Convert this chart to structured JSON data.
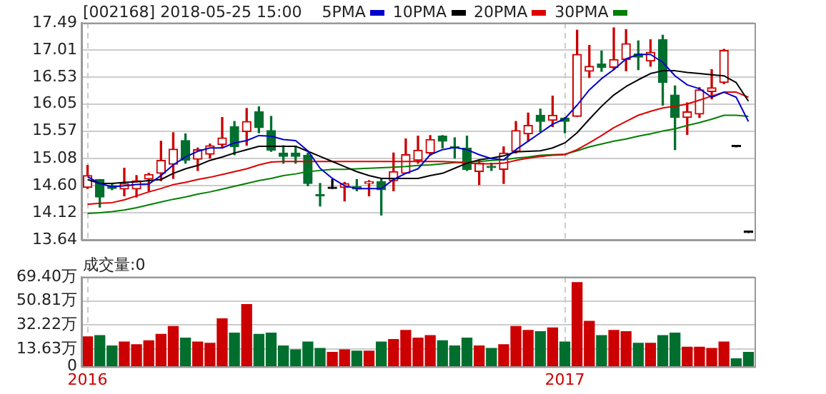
{
  "chart_data": [
    {
      "type": "candlestick",
      "title": "[002168] 2018-05-25 15:00",
      "categories": [
        "2016",
        null,
        null,
        null,
        null,
        null,
        null,
        null,
        null,
        null,
        null,
        null,
        null,
        null,
        null,
        null,
        null,
        null,
        null,
        null,
        null,
        null,
        null,
        null,
        null,
        null,
        null,
        null,
        null,
        null,
        null,
        null,
        null,
        null,
        null,
        null,
        null,
        null,
        null,
        "2017",
        null,
        null,
        null,
        null,
        null,
        null,
        null,
        null,
        null,
        null,
        null,
        null,
        null,
        null,
        null
      ],
      "ohlc": [
        [
          14.57,
          14.96,
          14.55,
          14.78
        ],
        [
          14.71,
          14.71,
          14.22,
          14.4
        ],
        [
          14.6,
          14.62,
          14.53,
          14.55
        ],
        [
          14.54,
          14.91,
          14.42,
          14.64
        ],
        [
          14.54,
          14.78,
          14.4,
          14.69
        ],
        [
          14.72,
          14.82,
          14.51,
          14.8
        ],
        [
          14.82,
          15.39,
          14.69,
          15.05
        ],
        [
          14.98,
          15.54,
          14.73,
          15.25
        ],
        [
          15.4,
          15.52,
          15.0,
          15.05
        ],
        [
          15.07,
          15.27,
          14.87,
          15.24
        ],
        [
          15.16,
          15.34,
          15.09,
          15.31
        ],
        [
          15.33,
          15.81,
          15.27,
          15.45
        ],
        [
          15.65,
          15.74,
          15.15,
          15.29
        ],
        [
          15.56,
          15.97,
          15.32,
          15.74
        ],
        [
          15.91,
          16.0,
          15.54,
          15.63
        ],
        [
          15.58,
          15.83,
          15.21,
          15.23
        ],
        [
          15.18,
          15.31,
          15.0,
          15.12
        ],
        [
          15.18,
          15.3,
          15.0,
          15.12
        ],
        [
          15.14,
          15.18,
          14.6,
          14.64
        ],
        [
          14.44,
          14.64,
          14.24,
          14.42
        ],
        [
          14.55,
          14.71,
          14.55,
          14.55
        ],
        [
          14.57,
          14.66,
          14.33,
          14.64
        ],
        [
          14.58,
          14.71,
          14.51,
          14.54
        ],
        [
          14.64,
          14.69,
          14.42,
          14.67
        ],
        [
          14.67,
          14.71,
          14.08,
          14.53
        ],
        [
          14.69,
          15.18,
          14.51,
          14.85
        ],
        [
          14.82,
          15.43,
          14.82,
          15.15
        ],
        [
          15.05,
          15.48,
          15.0,
          15.23
        ],
        [
          15.18,
          15.49,
          15.14,
          15.42
        ],
        [
          15.48,
          15.49,
          15.27,
          15.39
        ],
        [
          15.29,
          15.45,
          15.09,
          15.27
        ],
        [
          15.27,
          15.48,
          14.87,
          14.89
        ],
        [
          14.85,
          15.05,
          14.62,
          15.0
        ],
        [
          14.94,
          15.0,
          14.87,
          14.92
        ],
        [
          14.89,
          15.29,
          14.64,
          15.18
        ],
        [
          15.21,
          15.74,
          15.18,
          15.58
        ],
        [
          15.52,
          15.89,
          15.39,
          15.67
        ],
        [
          15.85,
          15.96,
          15.56,
          15.74
        ],
        [
          15.76,
          16.19,
          15.65,
          15.85
        ],
        [
          15.8,
          15.81,
          15.54,
          15.74
        ],
        [
          15.83,
          17.36,
          15.83,
          16.93
        ],
        [
          16.63,
          17.09,
          16.52,
          16.72
        ],
        [
          16.76,
          16.99,
          16.63,
          16.7
        ],
        [
          16.7,
          17.4,
          16.66,
          16.84
        ],
        [
          16.84,
          17.37,
          16.64,
          17.12
        ],
        [
          16.94,
          17.17,
          16.66,
          16.88
        ],
        [
          16.81,
          17.19,
          16.72,
          16.97
        ],
        [
          17.19,
          17.27,
          16.03,
          16.43
        ],
        [
          16.21,
          16.37,
          15.24,
          15.81
        ],
        [
          15.81,
          16.07,
          15.51,
          15.91
        ],
        [
          15.87,
          16.34,
          15.81,
          16.3
        ],
        [
          16.27,
          16.66,
          16.14,
          16.34
        ],
        [
          16.43,
          17.02,
          16.41,
          17.0
        ],
        [
          15.29,
          15.29,
          15.29,
          15.29
        ],
        [
          13.77,
          13.77,
          13.77,
          13.77
        ]
      ],
      "series": [
        {
          "name": "5PMA",
          "type": "line",
          "color": "#0000cc",
          "values": [
            14.76,
            14.64,
            14.58,
            14.6,
            14.62,
            14.63,
            14.78,
            14.97,
            15.11,
            15.21,
            15.27,
            15.27,
            15.36,
            15.4,
            15.49,
            15.48,
            15.42,
            15.4,
            15.22,
            14.91,
            14.73,
            14.6,
            14.55,
            14.55,
            14.55,
            14.71,
            14.82,
            14.9,
            15.15,
            15.24,
            15.28,
            15.24,
            15.15,
            15.08,
            15.06,
            15.24,
            15.39,
            15.54,
            15.69,
            15.79,
            16.03,
            16.3,
            16.5,
            16.66,
            16.85,
            16.93,
            16.93,
            16.79,
            16.55,
            16.39,
            16.32,
            16.17,
            16.26,
            16.17,
            15.74
          ]
        },
        {
          "name": "10PMA",
          "type": "line",
          "color": "#000000",
          "values": [
            14.71,
            14.64,
            14.64,
            14.66,
            14.67,
            14.69,
            14.71,
            14.82,
            14.9,
            14.96,
            15.05,
            15.11,
            15.18,
            15.24,
            15.3,
            15.3,
            15.3,
            15.3,
            15.21,
            15.12,
            15.03,
            14.94,
            14.85,
            14.78,
            14.73,
            14.73,
            14.73,
            14.73,
            14.78,
            14.82,
            14.91,
            15.0,
            15.06,
            15.09,
            15.13,
            15.2,
            15.21,
            15.22,
            15.27,
            15.36,
            15.54,
            15.78,
            16.01,
            16.21,
            16.36,
            16.48,
            16.59,
            16.64,
            16.64,
            16.61,
            16.59,
            16.57,
            16.55,
            16.43,
            16.1
          ]
        },
        {
          "name": "20PMA",
          "type": "line",
          "color": "#dd0000",
          "values": [
            14.27,
            14.29,
            14.3,
            14.35,
            14.42,
            14.49,
            14.55,
            14.62,
            14.66,
            14.71,
            14.75,
            14.8,
            14.85,
            14.9,
            14.97,
            15.02,
            15.03,
            15.03,
            15.03,
            15.03,
            15.03,
            15.03,
            15.03,
            15.03,
            15.03,
            15.03,
            15.03,
            15.03,
            15.03,
            15.03,
            15.02,
            15.0,
            14.99,
            14.99,
            15.0,
            15.05,
            15.09,
            15.12,
            15.14,
            15.15,
            15.24,
            15.36,
            15.49,
            15.63,
            15.74,
            15.85,
            15.92,
            15.98,
            16.01,
            16.05,
            16.12,
            16.19,
            16.26,
            16.26,
            16.17
          ]
        },
        {
          "name": "30PMA",
          "type": "line",
          "color": "#008000",
          "values": [
            14.11,
            14.12,
            14.14,
            14.17,
            14.21,
            14.26,
            14.31,
            14.36,
            14.4,
            14.45,
            14.49,
            14.54,
            14.59,
            14.64,
            14.69,
            14.73,
            14.78,
            14.81,
            14.85,
            14.87,
            14.89,
            14.89,
            14.9,
            14.91,
            14.92,
            14.93,
            14.94,
            14.96,
            14.97,
            14.99,
            15.01,
            15.02,
            15.03,
            15.05,
            15.06,
            15.09,
            15.11,
            15.14,
            15.15,
            15.16,
            15.22,
            15.29,
            15.34,
            15.39,
            15.43,
            15.48,
            15.52,
            15.57,
            15.61,
            15.67,
            15.72,
            15.78,
            15.85,
            15.85,
            15.83
          ]
        }
      ],
      "ylim": [
        13.64,
        17.49
      ],
      "yticks": [
        13.64,
        14.12,
        {
          "value": 14.6,
          "label": "14.60"
        },
        15.08,
        15.57,
        16.05,
        16.53,
        17.01,
        17.49
      ],
      "grid": "y",
      "legend": "top",
      "tick_labels": "y",
      "ref_lines": [
        {
          "axis": "x",
          "value": "2016",
          "color": "#cccccc",
          "line_style": "dashed"
        },
        {
          "axis": "x",
          "value": "2017",
          "color": "#cccccc",
          "line_style": "dashed"
        }
      ]
    },
    {
      "type": "bar",
      "title": "成交量:0",
      "categories": [
        "2016",
        null,
        null,
        null,
        null,
        null,
        null,
        null,
        null,
        null,
        null,
        null,
        null,
        null,
        null,
        null,
        null,
        null,
        null,
        null,
        null,
        null,
        null,
        null,
        null,
        null,
        null,
        null,
        null,
        null,
        null,
        null,
        null,
        null,
        null,
        null,
        null,
        null,
        null,
        "2017",
        null,
        null,
        null,
        null,
        null,
        null,
        null,
        null,
        null,
        null,
        null,
        null,
        null,
        null,
        null
      ],
      "values": [
        23,
        24,
        16,
        19,
        17,
        20,
        25,
        31,
        22,
        19,
        18,
        37,
        26,
        48,
        25,
        26,
        16,
        13,
        19,
        14,
        11,
        13,
        12,
        12,
        19,
        21,
        28,
        22,
        24,
        20,
        16,
        22,
        16,
        14,
        17,
        31,
        28,
        27,
        30,
        19,
        65,
        35,
        24,
        28,
        27,
        18,
        18,
        24,
        26,
        15,
        15,
        14,
        19,
        6,
        11
      ],
      "colors": [
        "#cc0000",
        "#006f2e",
        "#006f2e",
        "#cc0000",
        "#cc0000",
        "#cc0000",
        "#cc0000",
        "#cc0000",
        "#006f2e",
        "#cc0000",
        "#cc0000",
        "#cc0000",
        "#006f2e",
        "#cc0000",
        "#006f2e",
        "#006f2e",
        "#006f2e",
        "#006f2e",
        "#006f2e",
        "#006f2e",
        "#cc0000",
        "#cc0000",
        "#006f2e",
        "#cc0000",
        "#006f2e",
        "#cc0000",
        "#cc0000",
        "#cc0000",
        "#cc0000",
        "#006f2e",
        "#006f2e",
        "#006f2e",
        "#cc0000",
        "#006f2e",
        "#cc0000",
        "#cc0000",
        "#cc0000",
        "#006f2e",
        "#cc0000",
        "#006f2e",
        "#cc0000",
        "#cc0000",
        "#006f2e",
        "#cc0000",
        "#cc0000",
        "#006f2e",
        "#cc0000",
        "#006f2e",
        "#006f2e",
        "#cc0000",
        "#cc0000",
        "#cc0000",
        "#cc0000",
        "#006f2e",
        "#006f2e"
      ],
      "ylim": [
        0,
        69.4
      ],
      "yticks": [
        0,
        {
          "value": 13.63,
          "label": "13.63万"
        },
        {
          "value": 32.22,
          "label": "32.22万"
        },
        {
          "value": 50.81,
          "label": "50.81万"
        },
        {
          "value": 69.4,
          "label": "69.40万"
        }
      ],
      "grid": "y",
      "ref_lines": [
        {
          "axis": "x",
          "value": "2016",
          "color": "#cccccc",
          "line_style": "dashed"
        },
        {
          "axis": "x",
          "value": "2017",
          "color": "#cccccc",
          "line_style": "dashed"
        }
      ]
    }
  ]
}
